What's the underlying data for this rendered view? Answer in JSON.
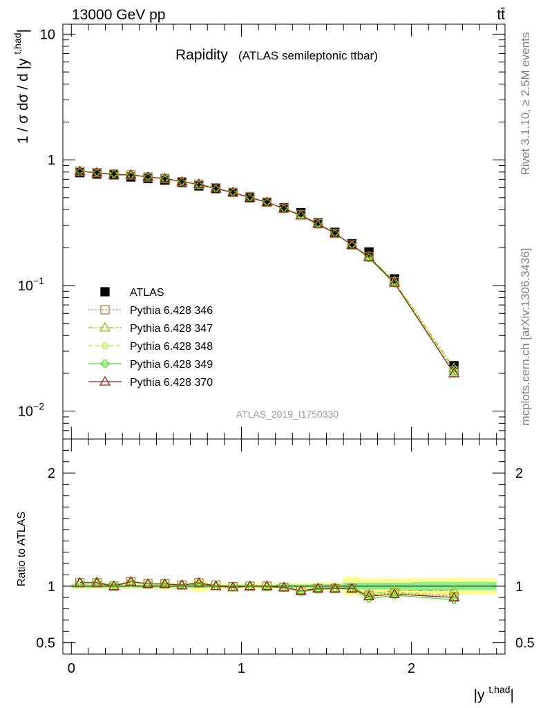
{
  "header": {
    "energy_label": "13000 GeV pp",
    "process_label": "tt̄"
  },
  "side_labels": {
    "rivet": "Rivet 3.1.10, ≥ 2.5M events",
    "mcplots": "mcplots.cern.ch [arXiv:1306.3436]"
  },
  "chart_data": [
    {
      "type": "scatter",
      "title": "Rapidity",
      "subtitle": "(ATLAS semileptonic ttbar)",
      "analysis_tag": "ATLAS_2019_I1750330",
      "ylabel": "1 / σ dσ / d |y^{t,had}|",
      "yscale": "log",
      "ylim": [
        0.006,
        12
      ],
      "xlim": [
        -0.05,
        2.55
      ],
      "yticks": [
        {
          "value": 10,
          "label": "10"
        },
        {
          "value": 1,
          "label": "1"
        },
        {
          "value": 0.1,
          "label": "10",
          "sup": "−1"
        },
        {
          "value": 0.01,
          "label": "10",
          "sup": "−2"
        }
      ],
      "legend_position": "lower-left",
      "x": [
        0.05,
        0.15,
        0.25,
        0.35,
        0.45,
        0.55,
        0.65,
        0.75,
        0.85,
        0.95,
        1.05,
        1.15,
        1.25,
        1.35,
        1.45,
        1.55,
        1.65,
        1.75,
        1.9,
        2.25
      ],
      "series": [
        {
          "name": "ATLAS",
          "marker": "square",
          "color": "#000000",
          "line": "none",
          "values": [
            0.79,
            0.77,
            0.76,
            0.73,
            0.71,
            0.69,
            0.66,
            0.62,
            0.59,
            0.55,
            0.5,
            0.46,
            0.415,
            0.38,
            0.315,
            0.265,
            0.215,
            0.185,
            0.113,
            0.023
          ]
        },
        {
          "name": "Pythia 6.428 346",
          "marker": "open-square",
          "color": "#b07a3c",
          "line": "dotted",
          "values": [
            0.81,
            0.79,
            0.77,
            0.76,
            0.73,
            0.71,
            0.67,
            0.64,
            0.6,
            0.55,
            0.51,
            0.46,
            0.41,
            0.365,
            0.31,
            0.26,
            0.21,
            0.17,
            0.107,
            0.021
          ]
        },
        {
          "name": "Pythia 6.428 347",
          "marker": "open-triangle",
          "color": "#99bb22",
          "line": "dashdot",
          "values": [
            0.81,
            0.79,
            0.76,
            0.76,
            0.73,
            0.71,
            0.67,
            0.64,
            0.59,
            0.55,
            0.5,
            0.46,
            0.41,
            0.365,
            0.31,
            0.26,
            0.21,
            0.17,
            0.108,
            0.022
          ]
        },
        {
          "name": "Pythia 6.428 348",
          "marker": "open-diamond",
          "color": "#aaee22",
          "line": "dashed",
          "values": [
            0.81,
            0.79,
            0.77,
            0.75,
            0.73,
            0.7,
            0.67,
            0.64,
            0.59,
            0.55,
            0.5,
            0.46,
            0.41,
            0.365,
            0.31,
            0.26,
            0.21,
            0.17,
            0.107,
            0.021
          ]
        },
        {
          "name": "Pythia 6.428 349",
          "marker": "open-cross",
          "color": "#44dd22",
          "line": "solid",
          "values": [
            0.81,
            0.79,
            0.77,
            0.76,
            0.73,
            0.71,
            0.67,
            0.63,
            0.59,
            0.55,
            0.5,
            0.46,
            0.41,
            0.36,
            0.305,
            0.26,
            0.21,
            0.165,
            0.104,
            0.02
          ]
        },
        {
          "name": "Pythia 6.428 370",
          "marker": "open-triangle",
          "color": "#992222",
          "line": "solid",
          "values": [
            0.81,
            0.79,
            0.76,
            0.76,
            0.73,
            0.71,
            0.67,
            0.64,
            0.59,
            0.55,
            0.5,
            0.46,
            0.41,
            0.36,
            0.31,
            0.26,
            0.21,
            0.168,
            0.105,
            0.02
          ]
        }
      ]
    },
    {
      "type": "line",
      "ylabel": "Ratio to ATLAS",
      "xlabel": "|y^{t,had}|",
      "ylim": [
        0.4,
        2.3
      ],
      "xlim": [
        -0.05,
        2.55
      ],
      "xticks": [
        0,
        1,
        2
      ],
      "yticks": [
        0.5,
        1,
        2
      ],
      "reference_line": 1,
      "band_bins": [
        {
          "lo": 0.0,
          "hi": 0.1,
          "inner": 0.015,
          "outer": 0.025
        },
        {
          "lo": 0.1,
          "hi": 0.2,
          "inner": 0.015,
          "outer": 0.025
        },
        {
          "lo": 0.2,
          "hi": 0.3,
          "inner": 0.012,
          "outer": 0.025
        },
        {
          "lo": 0.3,
          "hi": 0.4,
          "inner": 0.012,
          "outer": 0.025
        },
        {
          "lo": 0.4,
          "hi": 0.5,
          "inner": 0.012,
          "outer": 0.025
        },
        {
          "lo": 0.5,
          "hi": 0.6,
          "inner": 0.012,
          "outer": 0.03
        },
        {
          "lo": 0.6,
          "hi": 0.7,
          "inner": 0.012,
          "outer": 0.025
        },
        {
          "lo": 0.7,
          "hi": 0.8,
          "inner": 0.015,
          "outer": 0.05
        },
        {
          "lo": 0.8,
          "hi": 0.9,
          "inner": 0.012,
          "outer": 0.025
        },
        {
          "lo": 0.9,
          "hi": 1.0,
          "inner": 0.012,
          "outer": 0.025
        },
        {
          "lo": 1.0,
          "hi": 1.1,
          "inner": 0.012,
          "outer": 0.025
        },
        {
          "lo": 1.1,
          "hi": 1.2,
          "inner": 0.012,
          "outer": 0.025
        },
        {
          "lo": 1.2,
          "hi": 1.3,
          "inner": 0.015,
          "outer": 0.03
        },
        {
          "lo": 1.3,
          "hi": 1.4,
          "inner": 0.015,
          "outer": 0.03
        },
        {
          "lo": 1.4,
          "hi": 1.5,
          "inner": 0.015,
          "outer": 0.035
        },
        {
          "lo": 1.5,
          "hi": 1.6,
          "inner": 0.015,
          "outer": 0.035
        },
        {
          "lo": 1.6,
          "hi": 1.7,
          "inner": 0.03,
          "outer": 0.085
        },
        {
          "lo": 1.7,
          "hi": 1.8,
          "inner": 0.03,
          "outer": 0.07
        },
        {
          "lo": 1.8,
          "hi": 2.0,
          "inner": 0.03,
          "outer": 0.07
        },
        {
          "lo": 2.0,
          "hi": 2.5,
          "inner": 0.035,
          "outer": 0.075
        }
      ],
      "x": [
        0.05,
        0.15,
        0.25,
        0.35,
        0.45,
        0.55,
        0.65,
        0.75,
        0.85,
        0.95,
        1.05,
        1.15,
        1.25,
        1.35,
        1.45,
        1.55,
        1.65,
        1.75,
        1.9,
        2.25
      ],
      "series": [
        {
          "name": "Pythia 6.428 346",
          "values": [
            1.03,
            1.03,
            1.0,
            1.04,
            1.02,
            1.02,
            1.01,
            1.03,
            1.01,
            0.995,
            1.0,
            1.0,
            0.99,
            0.96,
            0.98,
            0.98,
            0.98,
            0.92,
            0.94,
            0.91
          ]
        },
        {
          "name": "Pythia 6.428 347",
          "values": [
            1.03,
            1.04,
            1.0,
            1.04,
            1.02,
            1.02,
            1.01,
            1.03,
            1.0,
            0.99,
            1.0,
            1.0,
            0.99,
            0.96,
            0.98,
            0.98,
            0.98,
            0.93,
            0.96,
            0.96
          ]
        },
        {
          "name": "Pythia 6.428 348",
          "values": [
            1.03,
            1.03,
            1.01,
            1.03,
            1.03,
            1.01,
            1.01,
            1.03,
            1.0,
            0.99,
            1.0,
            1.0,
            0.99,
            0.96,
            0.97,
            0.98,
            0.98,
            0.92,
            0.95,
            0.92
          ]
        },
        {
          "name": "Pythia 6.428 349",
          "values": [
            1.03,
            1.03,
            1.01,
            1.04,
            1.02,
            1.02,
            1.01,
            1.02,
            1.0,
            0.99,
            1.0,
            0.99,
            0.99,
            0.95,
            0.97,
            0.98,
            0.98,
            0.89,
            0.92,
            0.88
          ]
        },
        {
          "name": "Pythia 6.428 370",
          "values": [
            1.03,
            1.03,
            1.0,
            1.04,
            1.02,
            1.02,
            1.01,
            1.03,
            1.0,
            0.99,
            1.0,
            1.0,
            0.99,
            0.96,
            0.98,
            0.98,
            0.98,
            0.91,
            0.93,
            0.9
          ]
        }
      ]
    }
  ]
}
